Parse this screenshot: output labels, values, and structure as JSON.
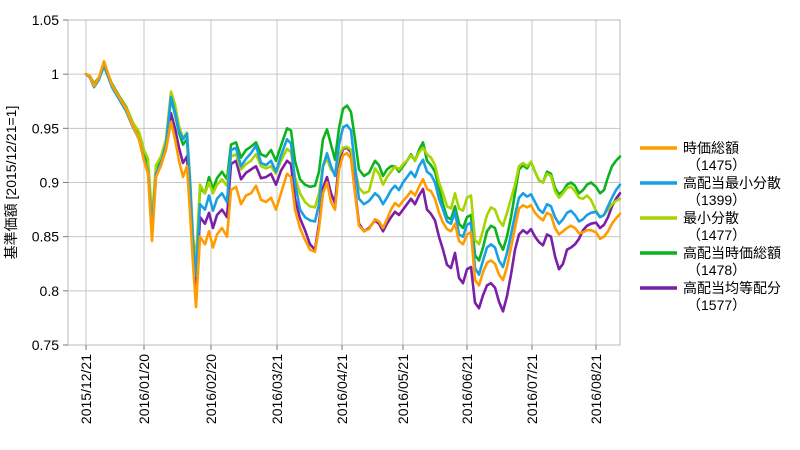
{
  "chart": {
    "ylabel": "基準価額 [2015/12/21=1]",
    "grid_color": "#c6c6c6",
    "border_color": "#b8b8b8",
    "background_color": "#ffffff"
  },
  "chart_data": {
    "type": "line",
    "title": "",
    "xlabel": "",
    "ylabel": "基準価額 [2015/12/21=1]",
    "ylim": [
      0.75,
      1.05
    ],
    "y_tick_values": [
      1.05,
      1.0,
      0.95,
      0.9,
      0.85,
      0.8,
      0.75
    ],
    "y_tick_labels": [
      "1.05",
      "1",
      "0.95",
      "0.9",
      "0.85",
      "0.8",
      "0.75"
    ],
    "grid": true,
    "legend_position": "right",
    "x_axis": {
      "tick_labels": [
        "2015/12/21",
        "2016/01/20",
        "2016/02/20",
        "2016/03/21",
        "2016/04/21",
        "2016/05/21",
        "2016/06/21",
        "2016/07/21",
        "2016/08/21"
      ],
      "tick_pos": [
        0,
        0.1086,
        0.2341,
        0.3577,
        0.4794,
        0.5936,
        0.7135,
        0.8352,
        0.9551
      ]
    },
    "x": [
      0,
      0.0075,
      0.015,
      0.0243,
      0.0337,
      0.0487,
      0.0618,
      0.0749,
      0.088,
      0.0993,
      0.1086,
      0.1161,
      0.1236,
      0.1311,
      0.1404,
      0.1498,
      0.1592,
      0.1667,
      0.1742,
      0.1816,
      0.1891,
      0.1948,
      0.2004,
      0.206,
      0.2135,
      0.2228,
      0.2303,
      0.2378,
      0.2453,
      0.2547,
      0.264,
      0.2715,
      0.2809,
      0.2903,
      0.2996,
      0.309,
      0.3183,
      0.3277,
      0.3371,
      0.3464,
      0.3558,
      0.3652,
      0.3764,
      0.3839,
      0.3914,
      0.4007,
      0.4101,
      0.4195,
      0.4288,
      0.4363,
      0.4438,
      0.4513,
      0.4588,
      0.4663,
      0.4738,
      0.4813,
      0.4888,
      0.4963,
      0.5037,
      0.5112,
      0.5206,
      0.53,
      0.5412,
      0.5487,
      0.5562,
      0.5637,
      0.5712,
      0.5787,
      0.5861,
      0.5936,
      0.6011,
      0.6086,
      0.6161,
      0.6236,
      0.6311,
      0.6386,
      0.6461,
      0.6536,
      0.661,
      0.6685,
      0.676,
      0.6835,
      0.691,
      0.6985,
      0.706,
      0.7135,
      0.721,
      0.7285,
      0.736,
      0.7434,
      0.7509,
      0.7584,
      0.7659,
      0.7734,
      0.7809,
      0.7884,
      0.7959,
      0.8034,
      0.8109,
      0.8184,
      0.8258,
      0.8333,
      0.8408,
      0.8483,
      0.8558,
      0.8633,
      0.8708,
      0.8783,
      0.8858,
      0.8933,
      0.9007,
      0.9082,
      0.9157,
      0.9232,
      0.9307,
      0.9382,
      0.9457,
      0.9551,
      0.9625,
      0.97,
      0.9775,
      0.985,
      0.9925,
      1.0
    ],
    "series": [
      {
        "name": "時価総額",
        "code_label": "（1475）",
        "color": "#ff9c00",
        "values": [
          1.0,
          0.998,
          0.989,
          0.997,
          1.012,
          0.99,
          0.979,
          0.968,
          0.952,
          0.94,
          0.92,
          0.908,
          0.846,
          0.905,
          0.916,
          0.93,
          0.956,
          0.94,
          0.92,
          0.905,
          0.915,
          0.872,
          0.825,
          0.785,
          0.85,
          0.843,
          0.855,
          0.84,
          0.852,
          0.858,
          0.85,
          0.893,
          0.896,
          0.88,
          0.888,
          0.89,
          0.897,
          0.884,
          0.882,
          0.886,
          0.875,
          0.89,
          0.908,
          0.905,
          0.875,
          0.858,
          0.847,
          0.838,
          0.836,
          0.858,
          0.89,
          0.9,
          0.882,
          0.875,
          0.912,
          0.925,
          0.927,
          0.922,
          0.89,
          0.86,
          0.855,
          0.857,
          0.866,
          0.864,
          0.858,
          0.866,
          0.875,
          0.881,
          0.878,
          0.883,
          0.887,
          0.892,
          0.888,
          0.896,
          0.903,
          0.894,
          0.892,
          0.885,
          0.872,
          0.863,
          0.857,
          0.855,
          0.862,
          0.846,
          0.843,
          0.852,
          0.854,
          0.81,
          0.805,
          0.817,
          0.826,
          0.828,
          0.825,
          0.815,
          0.81,
          0.822,
          0.84,
          0.858,
          0.876,
          0.879,
          0.877,
          0.879,
          0.872,
          0.868,
          0.865,
          0.872,
          0.87,
          0.858,
          0.852,
          0.855,
          0.858,
          0.86,
          0.858,
          0.853,
          0.854,
          0.856,
          0.856,
          0.854,
          0.848,
          0.85,
          0.855,
          0.862,
          0.867,
          0.871
        ]
      },
      {
        "name": "高配当最小分散",
        "code_label": "（1399）",
        "color": "#1a9fe5",
        "values": [
          1.0,
          0.997,
          0.988,
          0.995,
          1.008,
          0.988,
          0.977,
          0.966,
          0.951,
          0.94,
          0.922,
          0.91,
          0.858,
          0.908,
          0.918,
          0.935,
          0.979,
          0.965,
          0.948,
          0.94,
          0.945,
          0.9,
          0.845,
          0.814,
          0.88,
          0.875,
          0.888,
          0.874,
          0.885,
          0.89,
          0.882,
          0.93,
          0.932,
          0.915,
          0.922,
          0.927,
          0.934,
          0.918,
          0.916,
          0.92,
          0.91,
          0.925,
          0.94,
          0.936,
          0.9,
          0.875,
          0.868,
          0.865,
          0.864,
          0.88,
          0.915,
          0.927,
          0.915,
          0.906,
          0.935,
          0.951,
          0.953,
          0.948,
          0.915,
          0.885,
          0.88,
          0.883,
          0.89,
          0.887,
          0.88,
          0.886,
          0.893,
          0.897,
          0.893,
          0.9,
          0.905,
          0.91,
          0.905,
          0.915,
          0.921,
          0.91,
          0.907,
          0.9,
          0.885,
          0.875,
          0.864,
          0.862,
          0.873,
          0.852,
          0.85,
          0.861,
          0.863,
          0.821,
          0.815,
          0.828,
          0.84,
          0.843,
          0.84,
          0.828,
          0.822,
          0.835,
          0.852,
          0.87,
          0.886,
          0.89,
          0.887,
          0.889,
          0.882,
          0.875,
          0.872,
          0.88,
          0.878,
          0.868,
          0.862,
          0.866,
          0.872,
          0.874,
          0.87,
          0.864,
          0.866,
          0.87,
          0.872,
          0.873,
          0.868,
          0.87,
          0.878,
          0.886,
          0.893,
          0.898
        ]
      },
      {
        "name": "最小分散",
        "code_label": "（1477）",
        "color": "#a8d400",
        "values": [
          1.0,
          0.997,
          0.99,
          0.996,
          1.007,
          0.989,
          0.979,
          0.969,
          0.955,
          0.947,
          0.93,
          0.922,
          0.868,
          0.916,
          0.924,
          0.94,
          0.984,
          0.972,
          0.952,
          0.941,
          0.946,
          0.905,
          0.85,
          0.828,
          0.898,
          0.89,
          0.9,
          0.89,
          0.898,
          0.903,
          0.897,
          0.924,
          0.926,
          0.912,
          0.917,
          0.92,
          0.926,
          0.915,
          0.913,
          0.915,
          0.908,
          0.92,
          0.931,
          0.928,
          0.905,
          0.89,
          0.882,
          0.878,
          0.877,
          0.89,
          0.915,
          0.922,
          0.912,
          0.908,
          0.925,
          0.932,
          0.933,
          0.93,
          0.912,
          0.895,
          0.89,
          0.892,
          0.913,
          0.908,
          0.898,
          0.905,
          0.91,
          0.915,
          0.912,
          0.917,
          0.92,
          0.925,
          0.92,
          0.928,
          0.932,
          0.926,
          0.923,
          0.916,
          0.9,
          0.89,
          0.878,
          0.876,
          0.89,
          0.876,
          0.874,
          0.886,
          0.888,
          0.847,
          0.843,
          0.856,
          0.87,
          0.877,
          0.875,
          0.865,
          0.86,
          0.872,
          0.885,
          0.898,
          0.915,
          0.918,
          0.915,
          0.919,
          0.91,
          0.902,
          0.9,
          0.908,
          0.906,
          0.892,
          0.886,
          0.89,
          0.895,
          0.896,
          0.892,
          0.886,
          0.885,
          0.888,
          0.884,
          0.874,
          0.868,
          0.87,
          0.875,
          0.88,
          0.883,
          0.885
        ]
      },
      {
        "name": "高配当時価総額",
        "code_label": "（1478）",
        "color": "#0ab41e",
        "values": [
          1.0,
          0.998,
          0.991,
          0.997,
          1.009,
          0.991,
          0.98,
          0.97,
          0.955,
          0.944,
          0.926,
          0.914,
          0.862,
          0.91,
          0.92,
          0.936,
          0.978,
          0.963,
          0.946,
          0.935,
          0.94,
          0.895,
          0.846,
          0.82,
          0.895,
          0.89,
          0.905,
          0.894,
          0.904,
          0.91,
          0.903,
          0.935,
          0.937,
          0.923,
          0.93,
          0.933,
          0.937,
          0.926,
          0.924,
          0.93,
          0.92,
          0.934,
          0.95,
          0.948,
          0.92,
          0.903,
          0.898,
          0.896,
          0.897,
          0.91,
          0.94,
          0.949,
          0.935,
          0.921,
          0.95,
          0.968,
          0.971,
          0.965,
          0.94,
          0.912,
          0.906,
          0.909,
          0.92,
          0.916,
          0.906,
          0.912,
          0.915,
          0.915,
          0.91,
          0.915,
          0.92,
          0.926,
          0.92,
          0.93,
          0.937,
          0.92,
          0.916,
          0.91,
          0.895,
          0.88,
          0.868,
          0.866,
          0.878,
          0.862,
          0.858,
          0.868,
          0.87,
          0.833,
          0.828,
          0.84,
          0.855,
          0.86,
          0.858,
          0.845,
          0.838,
          0.85,
          0.868,
          0.89,
          0.912,
          0.916,
          0.913,
          0.919,
          0.91,
          0.902,
          0.9,
          0.91,
          0.908,
          0.895,
          0.889,
          0.892,
          0.898,
          0.9,
          0.897,
          0.89,
          0.893,
          0.898,
          0.9,
          0.896,
          0.89,
          0.893,
          0.905,
          0.915,
          0.92,
          0.924
        ]
      },
      {
        "name": "高配当均等配分",
        "code_label": "（1577）",
        "color": "#7b1fa8",
        "values": [
          1.0,
          0.997,
          0.989,
          0.996,
          1.008,
          0.989,
          0.978,
          0.967,
          0.952,
          0.941,
          0.922,
          0.91,
          0.852,
          0.906,
          0.916,
          0.932,
          0.964,
          0.95,
          0.932,
          0.918,
          0.924,
          0.885,
          0.838,
          0.801,
          0.868,
          0.862,
          0.872,
          0.858,
          0.87,
          0.875,
          0.868,
          0.917,
          0.92,
          0.903,
          0.909,
          0.912,
          0.915,
          0.904,
          0.905,
          0.908,
          0.898,
          0.911,
          0.92,
          0.917,
          0.885,
          0.867,
          0.856,
          0.843,
          0.838,
          0.862,
          0.895,
          0.905,
          0.89,
          0.881,
          0.918,
          0.931,
          0.932,
          0.928,
          0.893,
          0.862,
          0.855,
          0.858,
          0.865,
          0.862,
          0.855,
          0.862,
          0.868,
          0.873,
          0.87,
          0.875,
          0.88,
          0.885,
          0.88,
          0.888,
          0.894,
          0.875,
          0.871,
          0.865,
          0.85,
          0.838,
          0.824,
          0.821,
          0.835,
          0.812,
          0.807,
          0.82,
          0.822,
          0.789,
          0.784,
          0.796,
          0.805,
          0.807,
          0.803,
          0.79,
          0.781,
          0.795,
          0.815,
          0.838,
          0.852,
          0.856,
          0.853,
          0.857,
          0.85,
          0.845,
          0.842,
          0.852,
          0.85,
          0.832,
          0.82,
          0.825,
          0.838,
          0.84,
          0.843,
          0.848,
          0.856,
          0.86,
          0.862,
          0.863,
          0.858,
          0.861,
          0.868,
          0.878,
          0.885,
          0.89
        ]
      }
    ]
  }
}
